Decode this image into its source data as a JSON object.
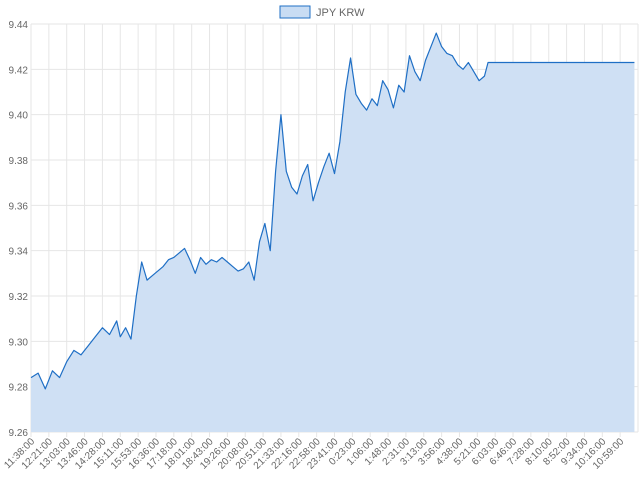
{
  "chart_data": {
    "type": "area",
    "title": "",
    "xlabel": "",
    "ylabel": "",
    "legend": {
      "placement": "top-center"
    },
    "grid": true,
    "colors": {
      "line": "#1f6fc5",
      "fill": "#cfe0f4",
      "grid": "#e6e6e6",
      "legend_box": "#c8dcf3"
    },
    "ylim": [
      9.26,
      9.44
    ],
    "yticks": [
      "9.26",
      "9.28",
      "9.30",
      "9.32",
      "9.34",
      "9.36",
      "9.38",
      "9.40",
      "9.42",
      "9.44"
    ],
    "categories": [
      "11:38:00",
      "12:21:00",
      "13:03:00",
      "13:46:00",
      "14:28:00",
      "15:11:00",
      "15:53:00",
      "16:36:00",
      "17:18:00",
      "18:01:00",
      "18:43:00",
      "19:26:00",
      "20:08:00",
      "20:51:00",
      "21:33:00",
      "22:16:00",
      "22:58:00",
      "23:41:00",
      "0:23:00",
      "1:06:00",
      "1:48:00",
      "2:31:00",
      "3:13:00",
      "3:56:00",
      "4:38:00",
      "5:21:00",
      "6:03:00",
      "6:46:00",
      "7:28:00",
      "8:10:00",
      "8:52:00",
      "9:34:00",
      "10:16:00",
      "10:59:00"
    ],
    "series": [
      {
        "name": "JPY KRW",
        "x": [
          0,
          0.4,
          0.8,
          1.2,
          1.6,
          2,
          2.4,
          2.8,
          3.2,
          3.6,
          4,
          4.4,
          4.8,
          5,
          5.3,
          5.6,
          5.9,
          6.2,
          6.5,
          6.8,
          7.1,
          7.4,
          7.7,
          8,
          8.3,
          8.6,
          8.9,
          9.2,
          9.5,
          9.8,
          10.1,
          10.4,
          10.7,
          11,
          11.3,
          11.6,
          11.9,
          12.2,
          12.5,
          12.8,
          13.1,
          13.4,
          13.7,
          14,
          14.3,
          14.6,
          14.9,
          15.2,
          15.5,
          15.8,
          16.1,
          16.4,
          16.7,
          17,
          17.3,
          17.6,
          17.9,
          18.2,
          18.5,
          18.8,
          19.1,
          19.4,
          19.7,
          20,
          20.3,
          20.6,
          20.9,
          21.2,
          21.5,
          21.8,
          22.1,
          22.4,
          22.7,
          23,
          23.3,
          23.6,
          23.9,
          24.2,
          24.5,
          24.8,
          25.1,
          25.4,
          25.6,
          25.7,
          33.8
        ],
        "values": [
          9.284,
          9.286,
          9.279,
          9.287,
          9.284,
          9.291,
          9.296,
          9.294,
          9.298,
          9.302,
          9.306,
          9.303,
          9.309,
          9.302,
          9.306,
          9.301,
          9.32,
          9.335,
          9.327,
          9.329,
          9.331,
          9.333,
          9.336,
          9.337,
          9.339,
          9.341,
          9.336,
          9.33,
          9.337,
          9.334,
          9.336,
          9.335,
          9.337,
          9.335,
          9.333,
          9.331,
          9.332,
          9.335,
          9.327,
          9.344,
          9.352,
          9.34,
          9.375,
          9.4,
          9.375,
          9.368,
          9.365,
          9.373,
          9.378,
          9.362,
          9.37,
          9.377,
          9.383,
          9.374,
          9.388,
          9.41,
          9.425,
          9.409,
          9.405,
          9.402,
          9.407,
          9.404,
          9.415,
          9.411,
          9.403,
          9.413,
          9.41,
          9.426,
          9.419,
          9.415,
          9.424,
          9.43,
          9.436,
          9.43,
          9.427,
          9.426,
          9.422,
          9.42,
          9.423,
          9.419,
          9.415,
          9.417,
          9.423,
          9.423,
          9.423
        ]
      }
    ]
  }
}
